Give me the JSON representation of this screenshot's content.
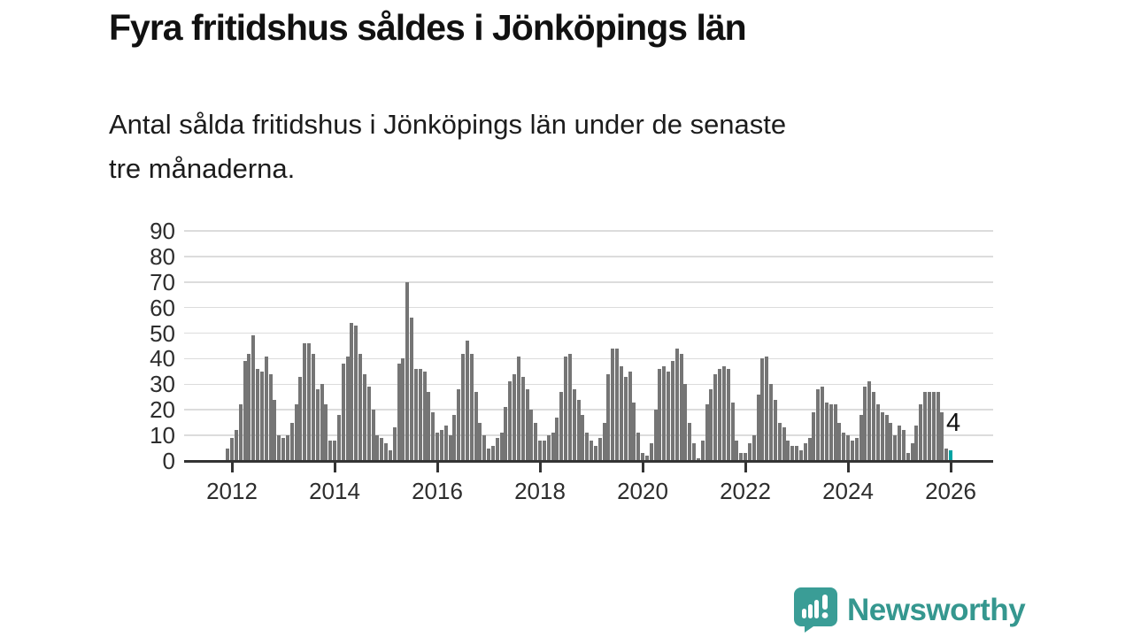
{
  "title": "Fyra fritidshus såldes i Jönköpings län",
  "subtitle_lines": [
    "Antal sålda fritidshus i Jönköpings län under de senaste",
    "tre månaderna."
  ],
  "logo": {
    "text": "Newsworthy",
    "icon": "speech-bubble-bar-chart-icon"
  },
  "colors": {
    "bar": "#757575",
    "highlight": "#00a3a3",
    "axis": "#333333",
    "grid": "#dcdcdc",
    "text": "#111111",
    "logo_teal": "#3a9d96"
  },
  "chart_data": {
    "type": "bar",
    "title": "Fyra fritidshus såldes i Jönköpings län",
    "subtitle": "Antal sålda fritidshus i Jönköpings län under de senaste tre månaderna.",
    "xlabel": "",
    "ylabel": "",
    "x_start_month": "2011-12",
    "x_step_months": 1,
    "x_tick_labels": [
      "2012",
      "2014",
      "2016",
      "2018",
      "2020",
      "2022",
      "2024",
      "2026"
    ],
    "y_ticks": [
      0,
      10,
      20,
      30,
      40,
      50,
      60,
      70,
      80,
      90
    ],
    "ylim": [
      0,
      94
    ],
    "grid": true,
    "legend": false,
    "last_value_label": "4",
    "highlight_last_bar": true,
    "values": [
      5,
      9,
      12,
      22,
      39,
      42,
      49,
      36,
      35,
      41,
      34,
      24,
      10,
      9,
      10,
      15,
      22,
      33,
      46,
      46,
      42,
      28,
      30,
      22,
      8,
      8,
      18,
      38,
      41,
      54,
      53,
      42,
      34,
      29,
      20,
      10,
      9,
      7,
      4,
      13,
      38,
      40,
      70,
      56,
      36,
      36,
      35,
      27,
      19,
      11,
      12,
      14,
      10,
      18,
      28,
      42,
      47,
      42,
      27,
      15,
      10,
      5,
      6,
      9,
      11,
      21,
      31,
      34,
      41,
      33,
      28,
      20,
      15,
      8,
      8,
      10,
      11,
      17,
      27,
      41,
      42,
      28,
      24,
      18,
      11,
      8,
      6,
      9,
      15,
      34,
      44,
      44,
      37,
      33,
      35,
      23,
      11,
      3,
      2,
      7,
      20,
      36,
      37,
      35,
      39,
      44,
      42,
      30,
      15,
      7,
      1,
      8,
      22,
      28,
      34,
      36,
      37,
      36,
      23,
      8,
      3,
      3,
      7,
      10,
      26,
      40,
      41,
      30,
      24,
      15,
      13,
      8,
      6,
      6,
      4,
      7,
      9,
      19,
      28,
      29,
      23,
      22,
      22,
      15,
      11,
      10,
      8,
      9,
      18,
      29,
      31,
      27,
      22,
      19,
      18,
      15,
      10,
      14,
      12,
      3,
      7,
      14,
      22,
      27,
      27,
      27,
      27,
      19,
      5,
      4
    ]
  }
}
